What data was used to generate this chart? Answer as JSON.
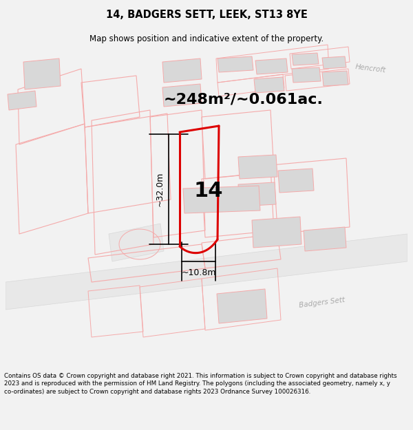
{
  "title": "14, BADGERS SETT, LEEK, ST13 8YE",
  "subtitle": "Map shows position and indicative extent of the property.",
  "area_text": "~248m²/~0.061ac.",
  "dim_width": "~10.8m",
  "dim_height": "~32.0m",
  "number_label": "14",
  "footer_text": "Contains OS data © Crown copyright and database right 2021. This information is subject to Crown copyright and database rights 2023 and is reproduced with the permission of HM Land Registry. The polygons (including the associated geometry, namely x, y co-ordinates) are subject to Crown copyright and database rights 2023 Ordnance Survey 100026316.",
  "bg_color": "#f2f2f2",
  "map_bg": "#ffffff",
  "plot_color": "#dd0000",
  "building_color": "#d8d8d8",
  "outline_color": "#f5aaaa",
  "street_color": "#999999",
  "title_fontsize": 10.5,
  "subtitle_fontsize": 8.5,
  "area_fontsize": 16,
  "number_fontsize": 22,
  "dim_fontsize": 9,
  "footer_fontsize": 6.3,
  "street_label_hencroft": "Hencroft",
  "street_label_badgers": "Badgers Sett"
}
